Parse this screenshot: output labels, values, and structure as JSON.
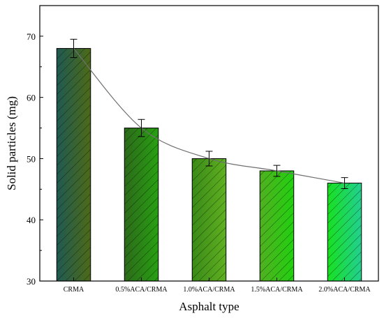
{
  "chart_data": {
    "type": "bar",
    "title": "",
    "xlabel": "Asphalt type",
    "ylabel": "Solid particles (mg)",
    "categories": [
      "CRMA",
      "0.5%ACA/CRMA",
      "1.0%ACA/CRMA",
      "1.5%ACA/CRMA",
      "2.0%ACA/CRMA"
    ],
    "values": [
      68,
      55,
      50,
      48,
      46
    ],
    "errors": [
      1.5,
      1.4,
      1.2,
      0.9,
      0.9
    ],
    "ylim": [
      30,
      75
    ],
    "yticks": [
      30,
      40,
      50,
      60,
      70
    ],
    "grid": false,
    "legend": "none",
    "trend_line": true,
    "bar_colors": [
      [
        "#1f5a52",
        "#4d6a18"
      ],
      [
        "#2c6a1a",
        "#28a012"
      ],
      [
        "#3a8a18",
        "#5fb020"
      ],
      [
        "#50b020",
        "#22d010"
      ],
      [
        "#18e020",
        "#22d090"
      ]
    ],
    "hatch": "diagonal"
  }
}
